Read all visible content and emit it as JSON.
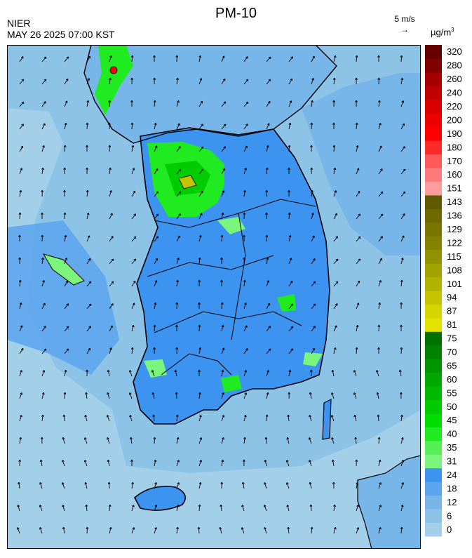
{
  "header": {
    "title": "PM-10",
    "agency": "NIER",
    "datetime": "MAY 26 2025 07:00 KST",
    "wind_reference": "5 m/s",
    "wind_reference_arrow": "→",
    "unit_base": "µg/m",
    "unit_exp": "3"
  },
  "legend": {
    "labels": [
      "0",
      "6",
      "12",
      "18",
      "24",
      "31",
      "35",
      "40",
      "45",
      "50",
      "55",
      "60",
      "65",
      "70",
      "75",
      "81",
      "87",
      "94",
      "101",
      "108",
      "115",
      "122",
      "129",
      "136",
      "143",
      "151",
      "160",
      "170",
      "180",
      "190",
      "200",
      "220",
      "240",
      "260",
      "280",
      "320"
    ],
    "colors": [
      "#a3cfe8",
      "#8ec3e8",
      "#78b6ea",
      "#5aa5ee",
      "#3c93f0",
      "#7cf57c",
      "#55f055",
      "#20eb20",
      "#00dd00",
      "#00cc00",
      "#00b800",
      "#00a800",
      "#009600",
      "#008400",
      "#007000",
      "#e3e300",
      "#d5d500",
      "#c4c400",
      "#b2b200",
      "#a2a200",
      "#929200",
      "#858200",
      "#7a7600",
      "#6e6a00",
      "#5f5a00",
      "#ff9d9d",
      "#ff7a7a",
      "#ff5a5a",
      "#ff2a2a",
      "#ff0000",
      "#ee0000",
      "#d80000",
      "#c00000",
      "#a60000",
      "#800000",
      "#640000"
    ]
  },
  "map": {
    "background": "#8ec3e8",
    "sea_open": "#a3cfe8",
    "land_base": "#5aa5ee",
    "wind_vectors": "grid of wind arrows, mostly northeastward"
  }
}
